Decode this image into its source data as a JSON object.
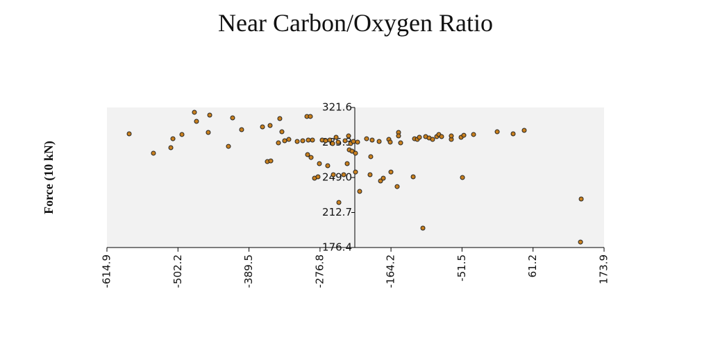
{
  "chart_data": {
    "type": "scatter",
    "title": "Near Carbon/Oxygen Ratio",
    "y_label": "Force (10 kN)",
    "color": "#c8801f",
    "x": [
      -579.6,
      -541.1,
      -513.5,
      -510.2,
      -495.9,
      -476.1,
      -472.8,
      -454.1,
      -451.8,
      -422.1,
      -415.5,
      -401.2,
      -368.1,
      -356.0,
      -360.4,
      -354.9,
      -340.6,
      -337.3,
      -342.8,
      -332.9,
      -326.3,
      -313.0,
      -304.2,
      -297.6,
      -292.1,
      -295.4,
      -288.8,
      -296.5,
      -291.0,
      -285.5,
      -280.0,
      -277.8,
      -273.4,
      -267.9,
      -264.6,
      -261.3,
      -256.8,
      -251.3,
      -248.0,
      -255.7,
      -246.9,
      -239.2,
      -237.0,
      -233.7,
      -231.5,
      -230.4,
      -228.2,
      -226.0,
      -223.8,
      -220.5,
      -220.5,
      -217.2,
      -213.9,
      -202.9,
      -197.4,
      -196.3,
      -194.1,
      -183.0,
      -180.8,
      -176.4,
      -167.6,
      -164.3,
      -165.4,
      -154.4,
      -152.2,
      -152.2,
      -148.9,
      -129.0,
      -126.8,
      -122.4,
      -119.1,
      -113.6,
      -109.2,
      -103.7,
      -98.2,
      -91.6,
      -88.3,
      -83.9,
      -68.5,
      -68.5,
      -50.8,
      -53.0,
      -48.6,
      -33.2,
      4.3,
      29.6,
      47.2,
      137.6,
      136.5
    ],
    "values": [
      294.3,
      274.2,
      279.9,
      289.2,
      293.6,
      316.6,
      307.2,
      295.7,
      313.7,
      281.3,
      310.8,
      298.6,
      301.5,
      302.9,
      265.5,
      266.2,
      310.1,
      296.4,
      284.9,
      287.1,
      288.5,
      286.4,
      287.1,
      312.3,
      312.3,
      287.8,
      287.8,
      272.7,
      269.8,
      248.3,
      249.7,
      263.4,
      287.8,
      287.1,
      261.2,
      287.8,
      284.2,
      290.7,
      285.7,
      251.9,
      223.1,
      251.9,
      287.1,
      263.4,
      292.1,
      277.7,
      284.2,
      276.3,
      286.4,
      274.2,
      254.7,
      285.7,
      234.6,
      289.2,
      251.9,
      270.6,
      287.8,
      286.4,
      245.4,
      248.3,
      288.5,
      254.7,
      285.7,
      239.6,
      295.7,
      292.1,
      284.9,
      249.7,
      289.2,
      288.5,
      290.7,
      196.5,
      291.4,
      290.0,
      288.5,
      291.4,
      293.6,
      291.4,
      288.5,
      292.1,
      249.0,
      290.7,
      292.8,
      293.6,
      296.4,
      294.3,
      297.9,
      226.7,
      182.1
    ],
    "xlim": [
      -614.9,
      173.9
    ],
    "xticks": [
      -614.9,
      -502.2,
      -389.5,
      -276.8,
      -164.2,
      -51.5,
      61.2,
      173.9
    ],
    "ylim": [
      176.4,
      321.6
    ],
    "yticks": [
      176.4,
      212.7,
      {
        "value": 249,
        "label": "249.0"
      },
      285.3,
      321.6
    ]
  }
}
